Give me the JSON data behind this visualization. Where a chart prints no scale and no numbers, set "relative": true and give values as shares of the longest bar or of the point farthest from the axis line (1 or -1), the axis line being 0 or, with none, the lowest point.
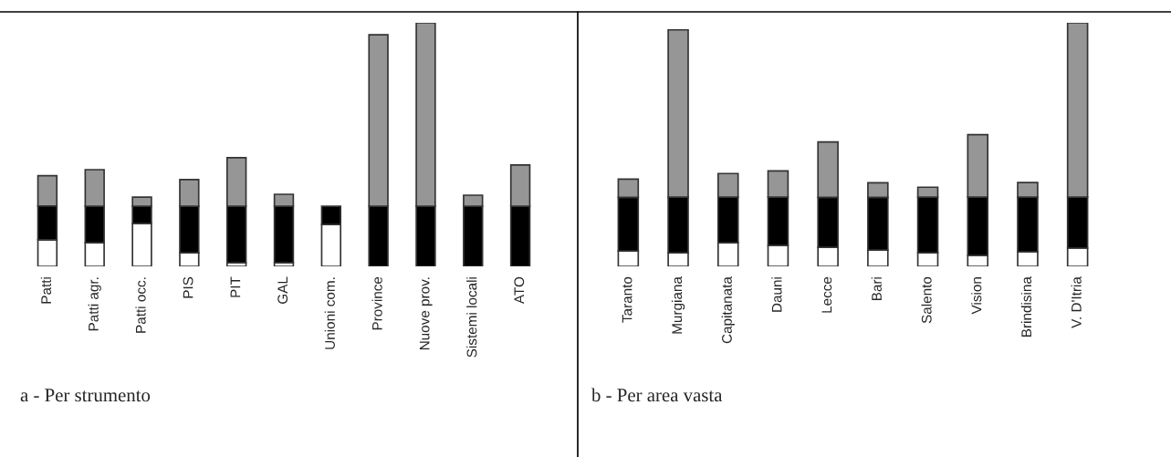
{
  "chart_data": [
    {
      "type": "bar",
      "title": "a - Per strumento",
      "relative": true,
      "stacked": true,
      "categories": [
        "Patti",
        "Patti agr.",
        "Patti occ.",
        "PIS",
        "PIT",
        "GAL",
        "Unioni com.",
        "Province",
        "Nuove prov.",
        "Sistemi locali",
        "ATO"
      ],
      "series": [
        {
          "color": "#ffffff",
          "values": [
            0.109,
            0.097,
            0.176,
            0.056,
            0.015,
            0.015,
            0.172,
            0,
            0,
            0,
            0
          ]
        },
        {
          "color": "#000000",
          "values": [
            0.139,
            0.15,
            0.071,
            0.191,
            0.232,
            0.232,
            0.075,
            0.247,
            0.247,
            0.247,
            0.247
          ]
        },
        {
          "color": "#969696",
          "values": [
            0.124,
            0.15,
            0.037,
            0.109,
            0.199,
            0.049,
            0,
            0.704,
            0.753,
            0.045,
            0.169
          ]
        }
      ]
    },
    {
      "type": "bar",
      "title": "b - Per area vasta",
      "relative": true,
      "stacked": true,
      "categories": [
        "Taranto",
        "Murgiana",
        "Capitanata",
        "Dauni",
        "Lecce",
        "Bari",
        "Salento",
        "Vision",
        "Brindisina",
        "V. D'Itria"
      ],
      "series": [
        {
          "color": "#ffffff",
          "values": [
            0.063,
            0.056,
            0.097,
            0.086,
            0.078,
            0.067,
            0.056,
            0.045,
            0.06,
            0.075
          ]
        },
        {
          "color": "#000000",
          "values": [
            0.22,
            0.228,
            0.187,
            0.198,
            0.205,
            0.216,
            0.228,
            0.239,
            0.224,
            0.209
          ]
        },
        {
          "color": "#969696",
          "values": [
            0.075,
            0.687,
            0.097,
            0.108,
            0.228,
            0.06,
            0.041,
            0.257,
            0.06,
            0.716
          ]
        }
      ]
    }
  ]
}
